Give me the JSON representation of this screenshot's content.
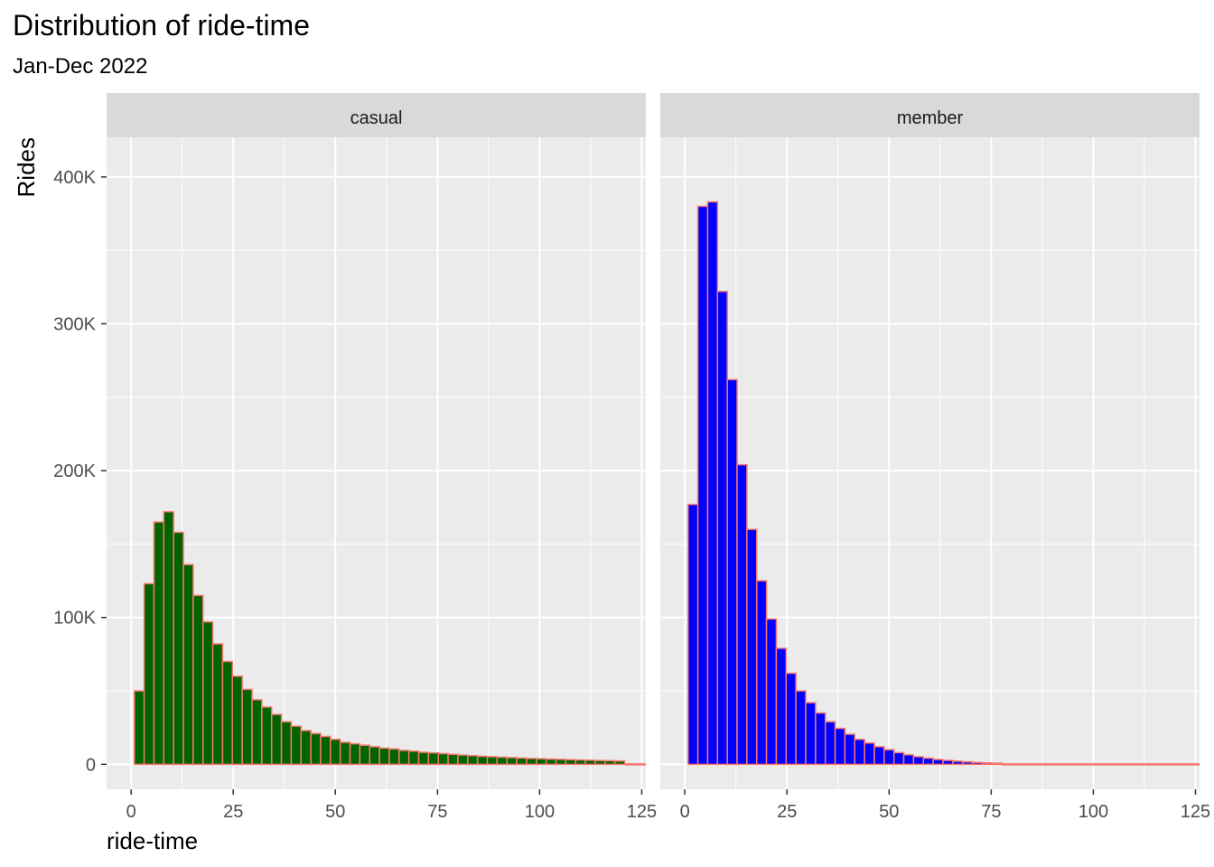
{
  "chart_data": {
    "type": "bar",
    "title": "Distribution of ride-time",
    "subtitle": "Jan-Dec 2022",
    "xlabel": "ride-time",
    "ylabel": "Rides",
    "xlim": [
      -6,
      126
    ],
    "ylim": [
      -17000,
      427000
    ],
    "x_ticks": [
      0,
      25,
      50,
      75,
      100,
      125
    ],
    "y_ticks": [
      0,
      100000,
      200000,
      300000,
      400000
    ],
    "y_tick_labels": [
      "0",
      "100K",
      "200K",
      "300K",
      "400K"
    ],
    "x_tick_labels": [
      "0",
      "25",
      "50",
      "75",
      "100",
      "125"
    ],
    "bin_width": 2.4,
    "bin_start": 0.8,
    "grid": true,
    "legend": "none",
    "bar_outline_color": "#F8766D",
    "panel_background": "#EBEBEB",
    "strip_background": "#D9D9D9",
    "panels": [
      {
        "label": "casual",
        "fill": "#006400",
        "values": [
          50000,
          123000,
          165000,
          172000,
          158000,
          136000,
          115000,
          97000,
          82000,
          70000,
          60000,
          51000,
          44000,
          39000,
          34000,
          29000,
          26000,
          23000,
          21000,
          19000,
          17000,
          15000,
          14000,
          13000,
          12000,
          11000,
          10500,
          9500,
          9000,
          8200,
          7800,
          7300,
          6800,
          6300,
          5900,
          5500,
          5200,
          4900,
          4600,
          4300,
          4000,
          3800,
          3600,
          3400,
          3200,
          3000,
          2800,
          2600,
          2500,
          2300
        ]
      },
      {
        "label": "member",
        "fill": "#0000FF",
        "values": [
          177000,
          380000,
          383000,
          322000,
          262000,
          204000,
          160000,
          125000,
          99000,
          79000,
          62000,
          50000,
          42000,
          35000,
          29000,
          24500,
          20500,
          17000,
          14500,
          12000,
          10000,
          8000,
          6500,
          5200,
          4200,
          3300,
          2700,
          2100,
          1700,
          1300,
          1000,
          800
        ]
      }
    ]
  }
}
